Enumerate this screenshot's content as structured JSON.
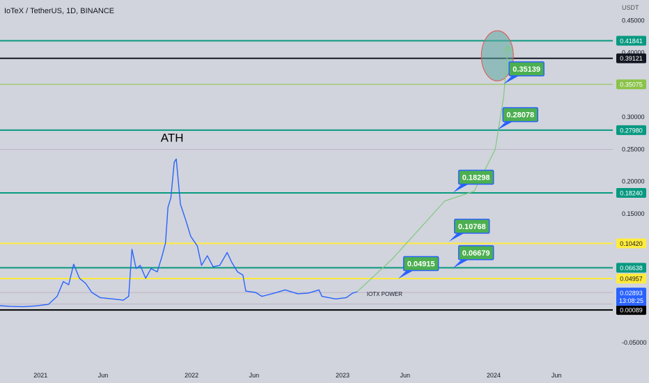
{
  "header": {
    "symbol_title": "IoTeX / TetherUS, 1D, BINANCE"
  },
  "chart_data": {
    "type": "line",
    "currency_label": "USDT",
    "y_ticks": [
      0.45,
      0.4,
      0.3,
      0.25,
      0.2,
      0.15,
      -0.05
    ],
    "y_tick_labels": [
      "0.45000",
      "0.40000",
      "0.30000",
      "0.25000",
      "0.20000",
      "0.15000",
      "-0.05000"
    ],
    "ylim": [
      -0.08,
      0.46
    ],
    "x_labels": [
      {
        "text": "2021",
        "x": "2021-01-01"
      },
      {
        "text": "Jun",
        "x": "2021-06-01"
      },
      {
        "text": "2022",
        "x": "2022-01-01"
      },
      {
        "text": "Jun",
        "x": "2022-06-01"
      },
      {
        "text": "2023",
        "x": "2023-01-01"
      },
      {
        "text": "Jun",
        "x": "2023-06-01"
      },
      {
        "text": "2024",
        "x": "2024-01-01"
      },
      {
        "text": "Jun",
        "x": "2024-06-01"
      }
    ],
    "xlim": [
      "2020-09-25",
      "2024-10-15"
    ],
    "price_series": {
      "color": "#2962ff",
      "points": [
        [
          "2020-09-25",
          0.0075
        ],
        [
          "2020-10-20",
          0.0065
        ],
        [
          "2020-11-20",
          0.006
        ],
        [
          "2020-12-20",
          0.0072
        ],
        [
          "2021-01-20",
          0.0095
        ],
        [
          "2021-02-10",
          0.022
        ],
        [
          "2021-02-25",
          0.045
        ],
        [
          "2021-03-10",
          0.04
        ],
        [
          "2021-03-22",
          0.072
        ],
        [
          "2021-04-05",
          0.05
        ],
        [
          "2021-04-20",
          0.042
        ],
        [
          "2021-05-05",
          0.028
        ],
        [
          "2021-05-25",
          0.02
        ],
        [
          "2021-06-25",
          0.018
        ],
        [
          "2021-07-20",
          0.016
        ],
        [
          "2021-08-02",
          0.022
        ],
        [
          "2021-08-10",
          0.095
        ],
        [
          "2021-08-20",
          0.065
        ],
        [
          "2021-08-30",
          0.07
        ],
        [
          "2021-09-12",
          0.05
        ],
        [
          "2021-09-25",
          0.065
        ],
        [
          "2021-10-10",
          0.06
        ],
        [
          "2021-10-22",
          0.085
        ],
        [
          "2021-10-30",
          0.105
        ],
        [
          "2021-11-05",
          0.16
        ],
        [
          "2021-11-12",
          0.175
        ],
        [
          "2021-11-20",
          0.23
        ],
        [
          "2021-11-25",
          0.235
        ],
        [
          "2021-12-05",
          0.165
        ],
        [
          "2021-12-18",
          0.14
        ],
        [
          "2021-12-30",
          0.115
        ],
        [
          "2022-01-15",
          0.1
        ],
        [
          "2022-01-25",
          0.07
        ],
        [
          "2022-02-08",
          0.085
        ],
        [
          "2022-02-22",
          0.068
        ],
        [
          "2022-03-10",
          0.07
        ],
        [
          "2022-03-28",
          0.09
        ],
        [
          "2022-04-08",
          0.075
        ],
        [
          "2022-04-22",
          0.06
        ],
        [
          "2022-05-05",
          0.055
        ],
        [
          "2022-05-12",
          0.03
        ],
        [
          "2022-06-05",
          0.028
        ],
        [
          "2022-06-20",
          0.022
        ],
        [
          "2022-07-20",
          0.027
        ],
        [
          "2022-08-15",
          0.032
        ],
        [
          "2022-09-15",
          0.026
        ],
        [
          "2022-10-10",
          0.027
        ],
        [
          "2022-11-05",
          0.032
        ],
        [
          "2022-11-12",
          0.022
        ],
        [
          "2022-12-15",
          0.018
        ],
        [
          "2023-01-10",
          0.02
        ],
        [
          "2023-01-25",
          0.027
        ],
        [
          "2023-02-05",
          0.029
        ]
      ]
    },
    "projection_path": {
      "label": "IOTX POWER",
      "color": "#7fc97f",
      "points": [
        [
          "2023-02-05",
          0.029
        ],
        [
          "2023-05-01",
          0.08
        ],
        [
          "2023-09-05",
          0.17
        ],
        [
          "2023-11-15",
          0.185
        ],
        [
          "2024-01-05",
          0.25
        ],
        [
          "2024-01-25",
          0.33
        ],
        [
          "2024-02-05",
          0.41
        ]
      ]
    },
    "target_circle": {
      "center": [
        "2024-01-10",
        0.395
      ]
    },
    "horizontal_levels": [
      {
        "value": 0.41841,
        "label": "0.41841",
        "color": "#089981",
        "badge_text": "#ffffff"
      },
      {
        "value": 0.39121,
        "label": "0.39121",
        "color": "#131722",
        "badge_text": "#ffffff"
      },
      {
        "value": 0.35075,
        "label": "0.35075",
        "color": "#8bc34a",
        "badge_text": "#ffffff"
      },
      {
        "value": 0.2798,
        "label": "0.27980",
        "color": "#089981",
        "badge_text": "#ffffff"
      },
      {
        "value": 0.1824,
        "label": "0.18240",
        "color": "#089981",
        "badge_text": "#ffffff"
      },
      {
        "value": 0.1042,
        "label": "0.10420",
        "color": "#ffeb3b",
        "badge_text": "#131722"
      },
      {
        "value": 0.06638,
        "label": "0.06638",
        "color": "#089981",
        "badge_text": "#ffffff"
      },
      {
        "value": 0.04957,
        "label": "0.04957",
        "color": "#ffeb3b",
        "badge_text": "#131722"
      },
      {
        "value": 0.00089,
        "label": "0.00089",
        "color": "#000000",
        "badge_text": "#ffffff"
      }
    ],
    "faint_levels": [
      0.25,
      0.028,
      0.01
    ],
    "current_price": {
      "value": 0.02893,
      "label": "0.02893",
      "countdown": "13:08:25",
      "color": "#2962ff"
    },
    "targets": [
      {
        "label": "0.04915",
        "x": "2023-05-15",
        "y": 0.049
      },
      {
        "label": "0.10768",
        "x": "2023-09-15",
        "y": 0.107
      },
      {
        "label": "0.06679",
        "x": "2023-09-25",
        "y": 0.066
      },
      {
        "label": "0.18298",
        "x": "2023-09-25",
        "y": 0.183
      },
      {
        "label": "0.28078",
        "x": "2024-01-10",
        "y": 0.28
      },
      {
        "label": "0.35139",
        "x": "2024-01-25",
        "y": 0.351
      }
    ],
    "annotations": [
      {
        "text": "ATH",
        "x": "2021-11-15",
        "y": 0.262
      }
    ]
  }
}
